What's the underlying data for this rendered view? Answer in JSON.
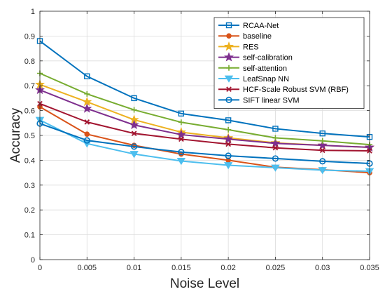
{
  "chart_data": {
    "type": "line",
    "title": "",
    "xlabel": "Noise Level",
    "ylabel": "Accuracy",
    "x": [
      0,
      0.005,
      0.01,
      0.015,
      0.02,
      0.025,
      0.03,
      0.035
    ],
    "x_tick_labels": [
      "0",
      "0.005",
      "0.01",
      "0.015",
      "0.02",
      "0.025",
      "0.03",
      "0.035"
    ],
    "xlim": [
      0,
      0.035
    ],
    "ylim": [
      0,
      1
    ],
    "y_ticks": [
      0,
      0.1,
      0.2,
      0.3,
      0.4,
      0.5,
      0.6,
      0.7,
      0.8,
      0.9,
      1
    ],
    "y_tick_labels": [
      "0",
      "0.1",
      "0.2",
      "0.3",
      "0.4",
      "0.5",
      "0.6",
      "0.7",
      "0.8",
      "0.9",
      "1"
    ],
    "grid": true,
    "legend_position": "top-right",
    "series": [
      {
        "name": "RCAA-Net",
        "color": "#0072BD",
        "marker": "square",
        "values": [
          0.88,
          0.738,
          0.65,
          0.588,
          0.561,
          0.527,
          0.508,
          0.494
        ]
      },
      {
        "name": "baseline",
        "color": "#D95319",
        "marker": "circle-filled",
        "values": [
          0.615,
          0.505,
          0.46,
          0.425,
          0.4,
          0.372,
          0.362,
          0.35
        ]
      },
      {
        "name": "RES",
        "color": "#EDB120",
        "marker": "star",
        "values": [
          0.705,
          0.635,
          0.563,
          0.513,
          0.49,
          0.47,
          0.46,
          0.452
        ]
      },
      {
        "name": "self-calibration",
        "color": "#7E2F8E",
        "marker": "star",
        "values": [
          0.683,
          0.608,
          0.542,
          0.503,
          0.485,
          0.468,
          0.46,
          0.452
        ]
      },
      {
        "name": "self-attention",
        "color": "#77AC30",
        "marker": "plus",
        "values": [
          0.75,
          0.667,
          0.603,
          0.553,
          0.523,
          0.49,
          0.478,
          0.463
        ]
      },
      {
        "name": "LeafSnap NN",
        "color": "#4DBEEE",
        "marker": "triangle-down",
        "values": [
          0.562,
          0.467,
          0.425,
          0.397,
          0.38,
          0.37,
          0.36,
          0.356
        ]
      },
      {
        "name": "HCF-Scale Robust SVM (RBF)",
        "color": "#A2142F",
        "marker": "x",
        "values": [
          0.628,
          0.554,
          0.508,
          0.485,
          0.465,
          0.45,
          0.44,
          0.438
        ]
      },
      {
        "name": "SIFT linear SVM",
        "color": "#0072BD",
        "marker": "circle-open",
        "values": [
          0.548,
          0.48,
          0.455,
          0.433,
          0.418,
          0.407,
          0.396,
          0.387
        ]
      }
    ]
  }
}
